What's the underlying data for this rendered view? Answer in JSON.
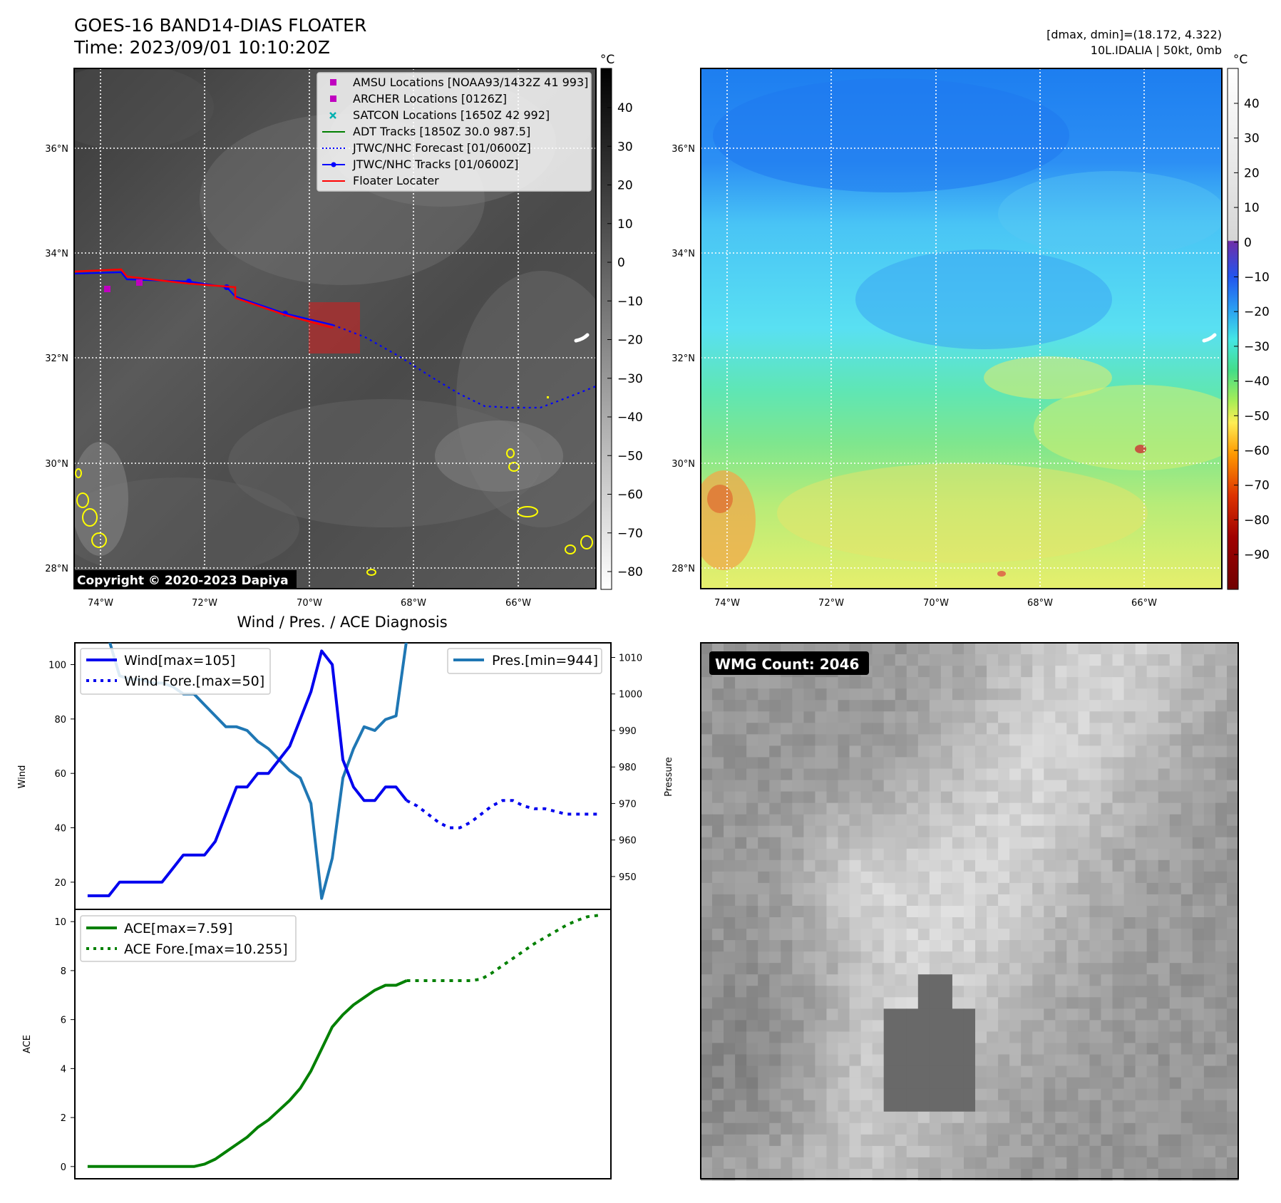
{
  "header": {
    "title_line1": "GOES-16 BAND14-DIAS FLOATER",
    "title_line2": "Time: 2023/09/01 10:10:20Z",
    "right_line1": "[dmax, dmin]=(18.172, 4.322)",
    "right_line2": "10L.IDALIA | 50kt, 0mb"
  },
  "map": {
    "lon_labels": [
      "74°W",
      "72°W",
      "70°W",
      "68°W",
      "66°W"
    ],
    "lat_labels": [
      "36°N",
      "34°N",
      "32°N",
      "30°N",
      "28°N"
    ],
    "copyright": "Copyright © 2020-2023 Dapiya",
    "legend": [
      {
        "label": "AMSU Locations [NOAA93/1432Z 41 993]",
        "color": "#c000c0",
        "marker": "square"
      },
      {
        "label": "ARCHER Locations [0126Z]",
        "color": "#c000c0",
        "marker": "square"
      },
      {
        "label": "SATCON Locations [1650Z 42 992]",
        "color": "#00b0b0",
        "marker": "x"
      },
      {
        "label": "ADT Tracks [1850Z 30.0 987.5]",
        "color": "#008000",
        "marker": "line"
      },
      {
        "label": "JTWC/NHC Forecast [01/0600Z]",
        "color": "#0000ff",
        "marker": "dotted"
      },
      {
        "label": "JTWC/NHC Tracks [01/0600Z]",
        "color": "#0000ff",
        "marker": "line-dot"
      },
      {
        "label": "Floater Locater",
        "color": "#ff0000",
        "marker": "line"
      }
    ]
  },
  "colorbar_gray": {
    "unit": "°C",
    "ticks": [
      "40",
      "30",
      "20",
      "10",
      "0",
      "−10",
      "−20",
      "−30",
      "−40",
      "−50",
      "−60",
      "−70",
      "−80"
    ]
  },
  "colorbar_color": {
    "unit": "°C",
    "ticks": [
      "40",
      "30",
      "20",
      "10",
      "0",
      "−10",
      "−20",
      "−30",
      "−40",
      "−50",
      "−60",
      "−70",
      "−80",
      "−90"
    ]
  },
  "chart_data": [
    {
      "type": "line",
      "title": "Wind / Pres. / ACE Diagnosis",
      "ylabel": "Wind",
      "ylabel_right": "Pressure",
      "ylim": [
        10,
        108
      ],
      "ylim_right": [
        941,
        1014
      ],
      "yticks": [
        20,
        40,
        60,
        80,
        100
      ],
      "yticks_right": [
        950,
        960,
        970,
        980,
        990,
        1000,
        1010
      ],
      "series": [
        {
          "name": "Wind[max=105]",
          "color": "#0000ee",
          "style": "solid",
          "axis": "left",
          "x": [
            0,
            1,
            2,
            3,
            4,
            5,
            6,
            7,
            8,
            9,
            10,
            11,
            12,
            13,
            14,
            15,
            16,
            17,
            18,
            19,
            20,
            21,
            22,
            23,
            24,
            25,
            26,
            27,
            28,
            29,
            30,
            31,
            32,
            33,
            34,
            35,
            36
          ],
          "values": [
            15,
            15,
            15,
            20,
            20,
            20,
            20,
            20,
            25,
            30,
            30,
            30,
            35,
            45,
            55,
            55,
            60,
            60,
            65,
            70,
            80,
            90,
            105,
            100,
            65,
            55,
            50,
            50,
            55,
            55,
            50,
            null,
            null,
            null,
            null,
            null,
            null
          ]
        },
        {
          "name": "Wind Fore.[max=50]",
          "color": "#0000ee",
          "style": "dotted",
          "axis": "left",
          "x": [
            30,
            31,
            32,
            33,
            34,
            35,
            36,
            37,
            38,
            39,
            40,
            41,
            42,
            43,
            44,
            45,
            46,
            47,
            48
          ],
          "values": [
            50,
            48,
            45,
            42,
            40,
            40,
            42,
            45,
            48,
            50,
            50,
            48,
            47,
            47,
            46,
            45,
            45,
            45,
            45
          ]
        },
        {
          "name": "Pres.[min=944]",
          "color": "#1f77b4",
          "style": "solid",
          "axis": "right",
          "x": [
            0,
            1,
            2,
            3,
            4,
            5,
            6,
            7,
            8,
            9,
            10,
            11,
            12,
            13,
            14,
            15,
            16,
            17,
            18,
            19,
            20,
            21,
            22,
            23,
            24,
            25,
            26,
            27,
            28,
            29,
            30
          ],
          "values": [
            1015,
            1015,
            1015,
            1005,
            1004,
            1004,
            1003,
            1003,
            1002,
            1000,
            1000,
            997,
            994,
            991,
            991,
            990,
            987,
            985,
            982,
            979,
            977,
            970,
            944,
            955,
            977,
            985,
            991,
            990,
            993,
            994,
            1015
          ]
        }
      ]
    },
    {
      "type": "line",
      "ylabel": "ACE",
      "ylim": [
        -0.5,
        10.5
      ],
      "yticks": [
        0,
        2,
        4,
        6,
        8,
        10
      ],
      "series": [
        {
          "name": "ACE[max=7.59]",
          "color": "#008000",
          "style": "solid",
          "x": [
            0,
            1,
            2,
            3,
            4,
            5,
            6,
            7,
            8,
            9,
            10,
            11,
            12,
            13,
            14,
            15,
            16,
            17,
            18,
            19,
            20,
            21,
            22,
            23,
            24,
            25,
            26,
            27,
            28,
            29,
            30
          ],
          "values": [
            0,
            0,
            0,
            0,
            0,
            0,
            0,
            0,
            0,
            0,
            0,
            0.1,
            0.3,
            0.6,
            0.9,
            1.2,
            1.6,
            1.9,
            2.3,
            2.7,
            3.2,
            3.9,
            4.8,
            5.7,
            6.2,
            6.6,
            6.9,
            7.2,
            7.4,
            7.4,
            7.59
          ]
        },
        {
          "name": "ACE Fore.[max=10.255]",
          "color": "#008000",
          "style": "dotted",
          "x": [
            30,
            31,
            32,
            33,
            34,
            35,
            36,
            37,
            38,
            39,
            40,
            41,
            42,
            43,
            44,
            45,
            46,
            47,
            48
          ],
          "values": [
            7.59,
            7.59,
            7.59,
            7.59,
            7.59,
            7.59,
            7.59,
            7.65,
            7.9,
            8.2,
            8.5,
            8.8,
            9.1,
            9.35,
            9.6,
            9.85,
            10.05,
            10.2,
            10.255
          ]
        }
      ]
    }
  ],
  "wmg": {
    "label": "WMG Count: 2046"
  }
}
